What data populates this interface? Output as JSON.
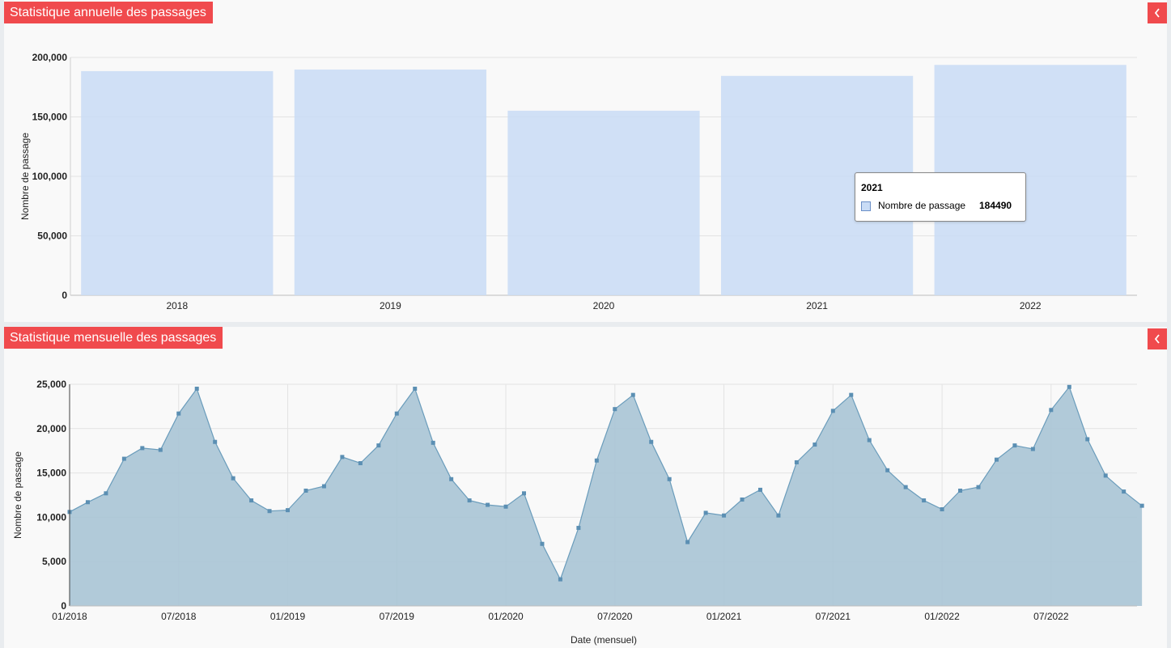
{
  "panels": {
    "annual": {
      "title": "Statistique annuelle des passages"
    },
    "monthly": {
      "title": "Statistique mensuelle des passages"
    }
  },
  "icons": {
    "collapse": "chevron-left-icon"
  },
  "colors": {
    "header_bg": "#f04a4d",
    "bar_fill": "#c9dcf6",
    "area_fill": "#a9c4d5",
    "area_line": "#6a9cbb",
    "point": "#5b8fb3"
  },
  "tooltip": {
    "title": "2021",
    "series_label": "Nombre de passage",
    "value": "184490"
  },
  "chart_data": [
    {
      "type": "bar",
      "categories": [
        "2018",
        "2019",
        "2020",
        "2021",
        "2022"
      ],
      "values": [
        188500,
        189800,
        155200,
        184490,
        193700
      ],
      "ylabel": "Nombre de passage",
      "ylim": [
        0,
        200000
      ],
      "yticks": [
        "0",
        "50,000",
        "100,000",
        "150,000",
        "200,000"
      ],
      "grid": true
    },
    {
      "type": "area",
      "xlabel": "Date (mensuel)",
      "ylabel": "Nombre de passage",
      "ylim": [
        0,
        25000
      ],
      "yticks": [
        "0",
        "5,000",
        "10,000",
        "15,000",
        "20,000",
        "25,000"
      ],
      "xticks": [
        "01/2018",
        "07/2018",
        "01/2019",
        "07/2019",
        "01/2020",
        "07/2020",
        "01/2021",
        "07/2021",
        "01/2022",
        "07/2022"
      ],
      "grid": true,
      "x": [
        "01/2018",
        "02/2018",
        "03/2018",
        "04/2018",
        "05/2018",
        "06/2018",
        "07/2018",
        "08/2018",
        "09/2018",
        "10/2018",
        "11/2018",
        "12/2018",
        "01/2019",
        "02/2019",
        "03/2019",
        "04/2019",
        "05/2019",
        "06/2019",
        "07/2019",
        "08/2019",
        "09/2019",
        "10/2019",
        "11/2019",
        "12/2019",
        "01/2020",
        "02/2020",
        "03/2020",
        "04/2020",
        "05/2020",
        "06/2020",
        "07/2020",
        "08/2020",
        "09/2020",
        "10/2020",
        "11/2020",
        "12/2020",
        "01/2021",
        "02/2021",
        "03/2021",
        "04/2021",
        "05/2021",
        "06/2021",
        "07/2021",
        "08/2021",
        "09/2021",
        "10/2021",
        "11/2021",
        "12/2021",
        "01/2022",
        "02/2022",
        "03/2022",
        "04/2022",
        "05/2022",
        "06/2022",
        "07/2022",
        "08/2022",
        "09/2022",
        "10/2022",
        "11/2022",
        "12/2022"
      ],
      "values": [
        10600,
        11700,
        12700,
        16600,
        17800,
        17600,
        21700,
        24500,
        18500,
        14400,
        11900,
        10700,
        10800,
        13000,
        13500,
        16800,
        16100,
        18100,
        21700,
        24500,
        18400,
        14300,
        11900,
        11400,
        11200,
        12700,
        7000,
        3000,
        8800,
        16400,
        22200,
        23800,
        18500,
        14300,
        7200,
        10500,
        10200,
        12000,
        13100,
        10200,
        16200,
        18200,
        22000,
        23800,
        18700,
        15300,
        13400,
        11900,
        10900,
        13000,
        13400,
        16500,
        18100,
        17700,
        22100,
        24700,
        18800,
        14700,
        12900,
        11300
      ]
    }
  ]
}
